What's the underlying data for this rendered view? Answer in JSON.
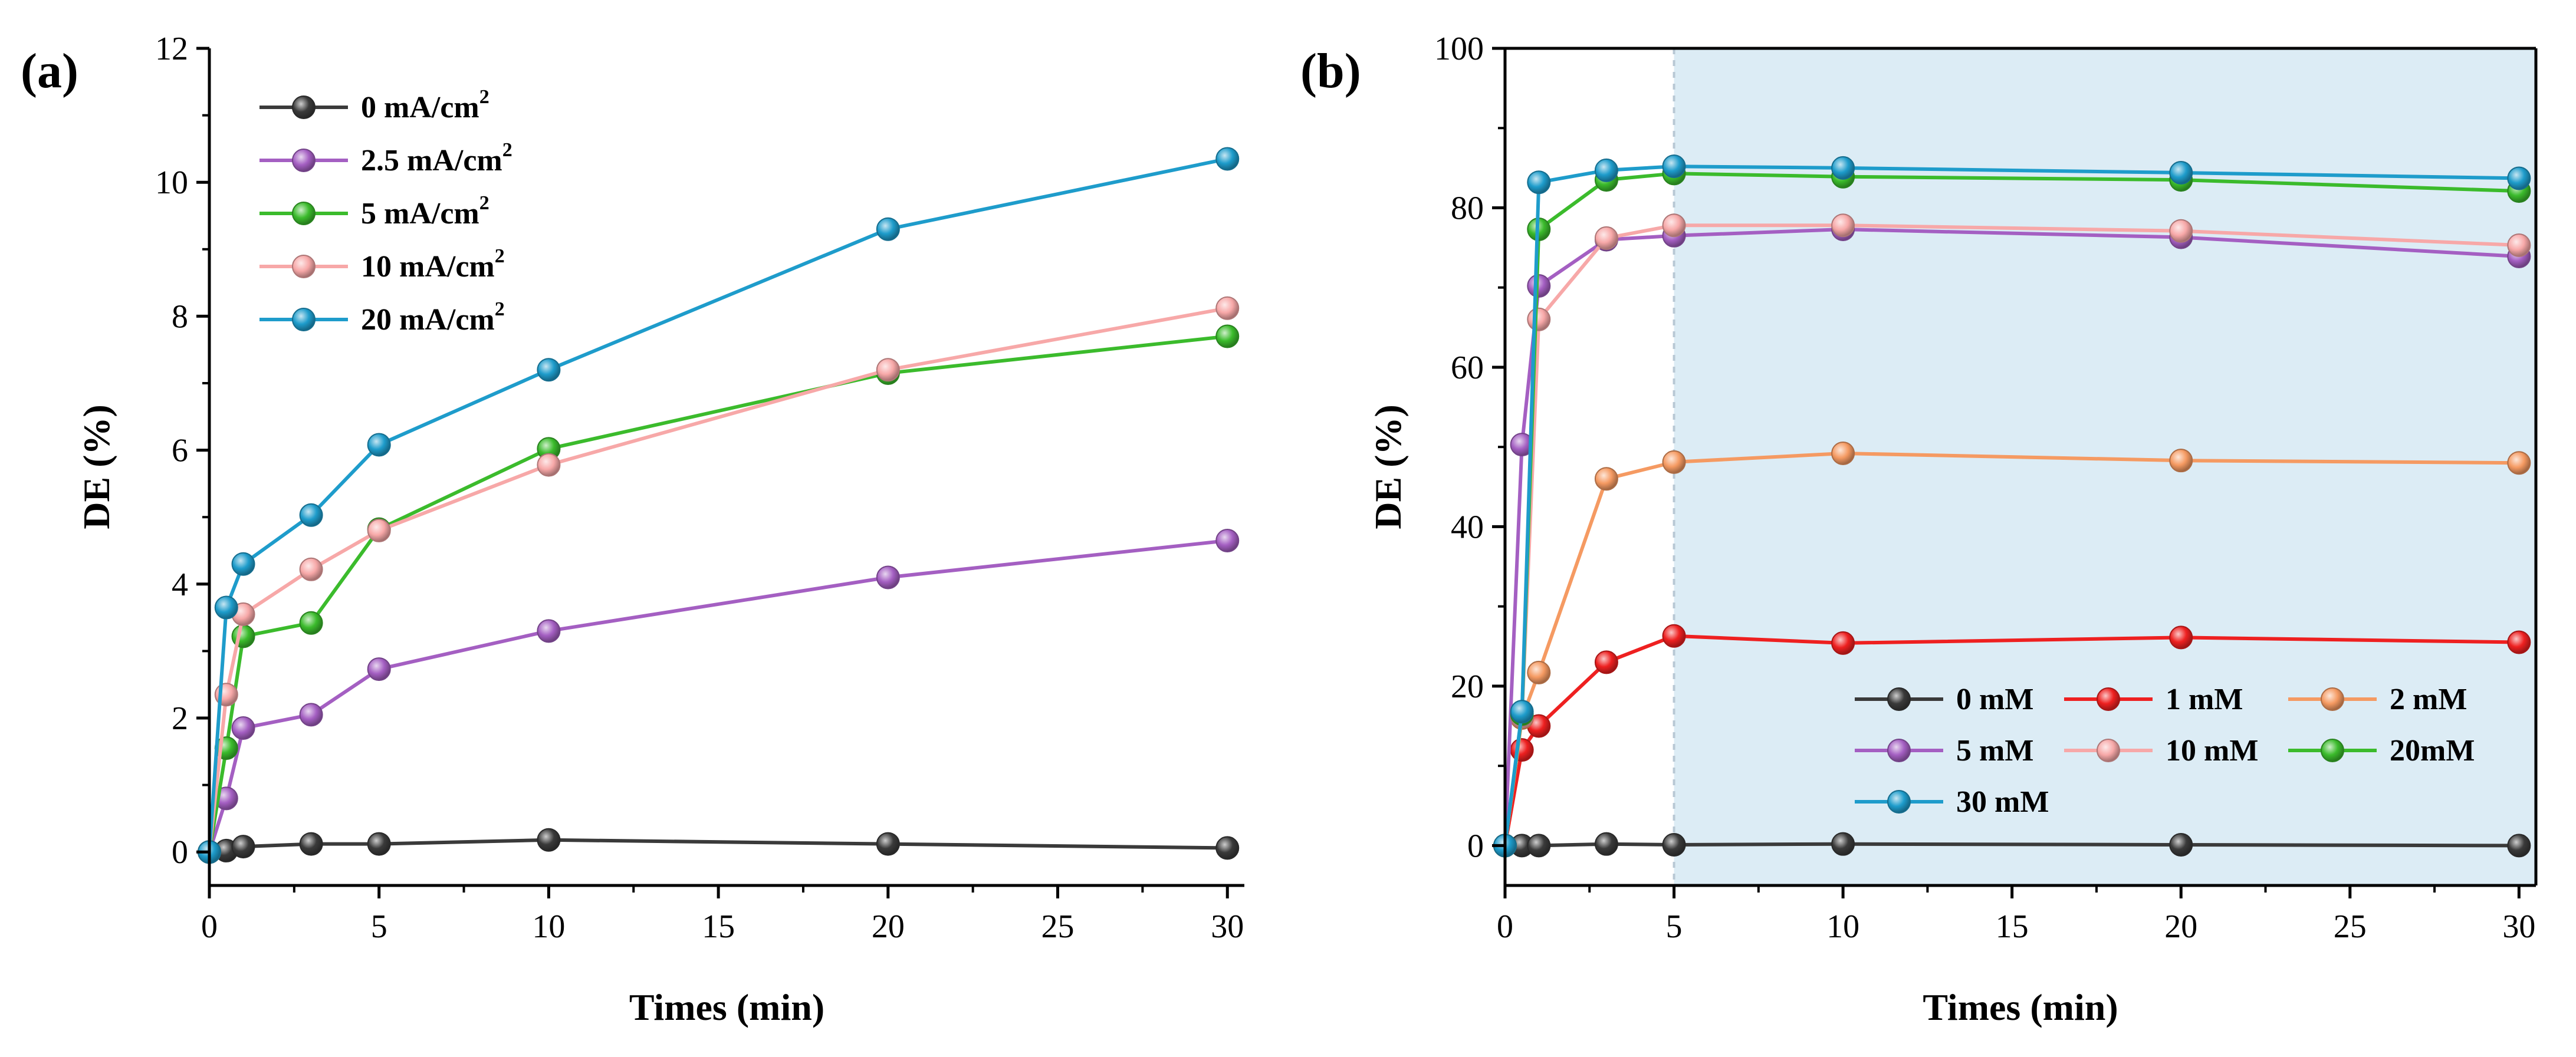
{
  "figure": {
    "panels": [
      "(a)",
      "(b)"
    ]
  },
  "chart_data": [
    {
      "type": "line",
      "panel_label": "(a)",
      "xlabel": "Times (min)",
      "ylabel": "DE (%)",
      "xlim": [
        0,
        30.5
      ],
      "ylim": [
        -0.5,
        12
      ],
      "xticks": [
        0,
        5,
        10,
        15,
        20,
        25,
        30
      ],
      "yticks": [
        0,
        2,
        4,
        6,
        8,
        10,
        12
      ],
      "grid": false,
      "legend_position": "top-left",
      "x": [
        0,
        0.5,
        1,
        3,
        5,
        10,
        20,
        30
      ],
      "series": [
        {
          "name": "0 mA/cm",
          "sup": "2",
          "color": "#3a3a3a",
          "values": [
            0,
            0.02,
            0.08,
            0.12,
            0.12,
            0.18,
            0.12,
            0.06
          ]
        },
        {
          "name": "2.5 mA/cm",
          "sup": "2",
          "color": "#a45fc2",
          "values": [
            0,
            0.8,
            1.85,
            2.05,
            2.73,
            3.3,
            4.1,
            4.65
          ]
        },
        {
          "name": "5 mA/cm",
          "sup": "2",
          "color": "#3bbb2c",
          "values": [
            0,
            1.55,
            3.22,
            3.42,
            4.82,
            6.02,
            7.15,
            7.7
          ]
        },
        {
          "name": "10 mA/cm",
          "sup": "2",
          "color": "#f7a8a8",
          "values": [
            0,
            2.35,
            3.55,
            4.22,
            4.8,
            5.78,
            7.2,
            8.12
          ]
        },
        {
          "name": "20 mA/cm",
          "sup": "2",
          "color": "#1e9ccb",
          "values": [
            0,
            3.65,
            4.3,
            5.03,
            6.08,
            7.2,
            9.3,
            10.35
          ]
        }
      ]
    },
    {
      "type": "line",
      "panel_label": "(b)",
      "xlabel": "Times (min)",
      "ylabel": "DE (%)",
      "xlim": [
        0,
        30.5
      ],
      "ylim": [
        -5,
        100
      ],
      "xticks": [
        0,
        5,
        10,
        15,
        20,
        25,
        30
      ],
      "yticks": [
        0,
        20,
        40,
        60,
        80,
        100
      ],
      "grid": false,
      "legend_position": "bottom-right",
      "shaded_region": {
        "from": 5,
        "to": 30.5,
        "color": "#dcecf5"
      },
      "x": [
        0,
        0.5,
        1,
        3,
        5,
        10,
        20,
        30
      ],
      "series": [
        {
          "name": "0 mM",
          "color": "#3a3a3a",
          "values": [
            0,
            0,
            0,
            0.2,
            0.1,
            0.2,
            0.1,
            0
          ]
        },
        {
          "name": "1 mM",
          "color": "#ee2020",
          "values": [
            0,
            12,
            15,
            23,
            26.3,
            25.4,
            26.1,
            25.5
          ]
        },
        {
          "name": "2 mM",
          "color": "#f59a62",
          "values": [
            0,
            16,
            21.7,
            46,
            48.1,
            49.2,
            48.3,
            48.0
          ]
        },
        {
          "name": "5 mM",
          "color": "#a45fc2",
          "values": [
            0,
            50.3,
            70.2,
            76.0,
            76.5,
            77.3,
            76.3,
            73.9
          ]
        },
        {
          "name": "10 mM",
          "color": "#f7a8a8",
          "values": [
            0,
            16.2,
            66.0,
            76.2,
            77.8,
            77.8,
            77.1,
            75.3
          ]
        },
        {
          "name": "20mM",
          "color": "#3bbb2c",
          "values": [
            0,
            16.5,
            77.3,
            83.5,
            84.3,
            83.9,
            83.5,
            82.1
          ]
        },
        {
          "name": "30 mM",
          "color": "#1e9ccb",
          "values": [
            0,
            16.8,
            83.2,
            84.7,
            85.2,
            85.0,
            84.4,
            83.7
          ]
        }
      ]
    }
  ]
}
